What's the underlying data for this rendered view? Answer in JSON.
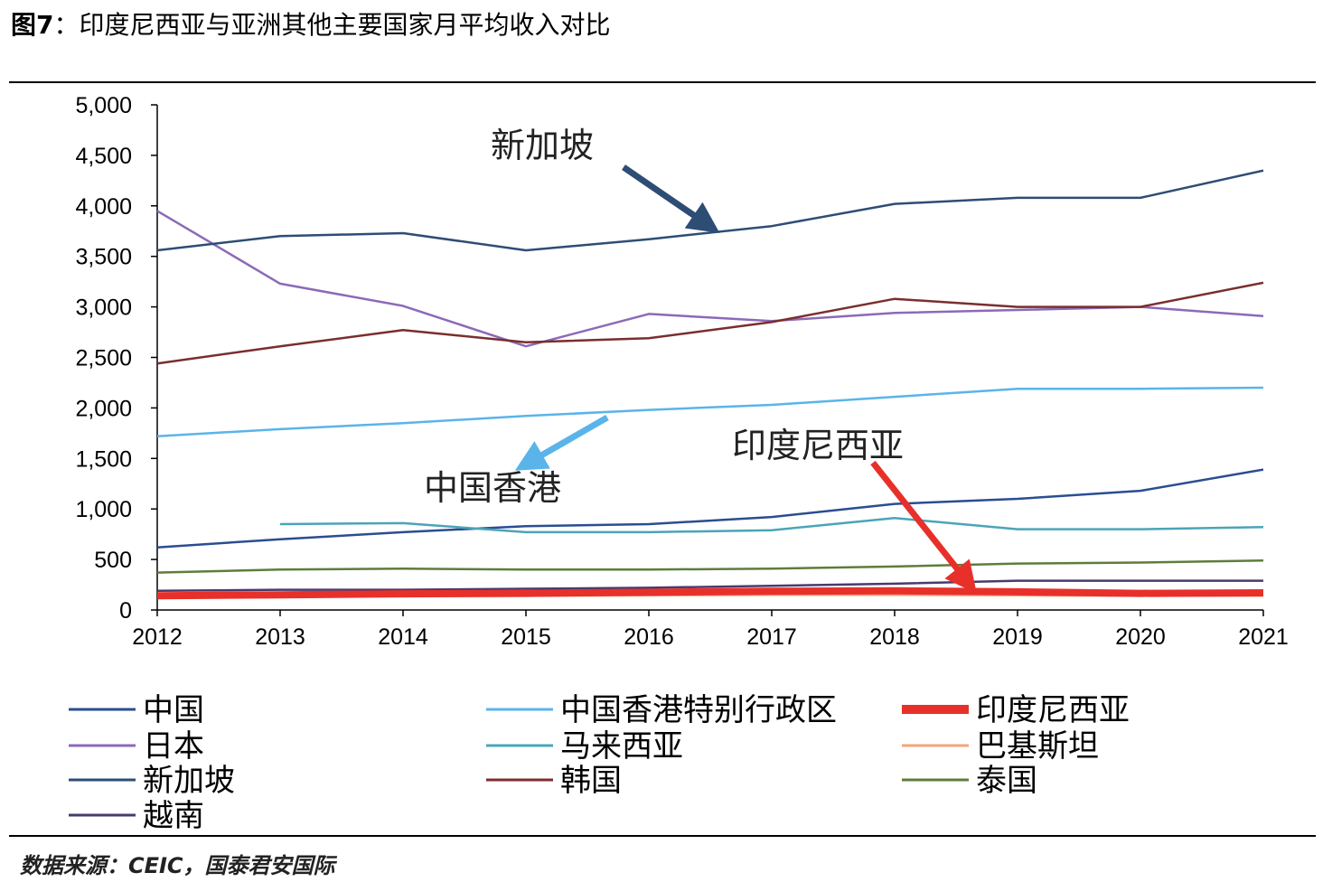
{
  "title": {
    "fig_label": "图7",
    "sep": "：",
    "text": "印度尼西亚与亚洲其他主要国家月平均收入对比"
  },
  "source": "数据来源：CEIC，国泰君安国际",
  "chart_data": {
    "type": "line",
    "title": "印度尼西亚与亚洲其他主要国家月平均收入对比",
    "xlabel": "",
    "ylabel": "",
    "ylim": [
      0,
      5000
    ],
    "yticks": [
      0,
      500,
      1000,
      1500,
      2000,
      2500,
      3000,
      3500,
      4000,
      4500,
      5000
    ],
    "ytick_labels": [
      "0",
      "500",
      "1,000",
      "1,500",
      "2,000",
      "2,500",
      "3,000",
      "3,500",
      "4,000",
      "4,500",
      "5,000"
    ],
    "x": [
      2012,
      2013,
      2014,
      2015,
      2016,
      2017,
      2018,
      2019,
      2020,
      2021
    ],
    "x_labels": [
      "2012",
      "2013",
      "2014",
      "2015",
      "2016",
      "2017",
      "2018",
      "2019",
      "2020",
      "2021"
    ],
    "grid": false,
    "legend_position": "bottom",
    "series": [
      {
        "name": "中国",
        "color": "#2b4d91",
        "width": 2.5,
        "values": [
          620,
          700,
          770,
          830,
          850,
          920,
          1050,
          1100,
          1180,
          1390
        ]
      },
      {
        "name": "中国香港特别行政区",
        "color": "#5ab4ea",
        "width": 2.5,
        "values": [
          1720,
          1790,
          1850,
          1920,
          1980,
          2030,
          2110,
          2190,
          2190,
          2200
        ]
      },
      {
        "name": "印度尼西亚",
        "color": "#e8302a",
        "width": 8,
        "values": [
          140,
          150,
          160,
          165,
          175,
          185,
          190,
          180,
          165,
          170
        ]
      },
      {
        "name": "日本",
        "color": "#8b6ab8",
        "width": 2.5,
        "values": [
          3950,
          3230,
          3010,
          2610,
          2930,
          2860,
          2940,
          2970,
          3000,
          2910
        ]
      },
      {
        "name": "马来西亚",
        "color": "#4ba4b8",
        "width": 2.5,
        "values": [
          null,
          850,
          860,
          770,
          770,
          790,
          910,
          800,
          800,
          820
        ]
      },
      {
        "name": "巴基斯坦",
        "color": "#f5a57a",
        "width": 2.5,
        "values": [
          130,
          135,
          140,
          140,
          145,
          150,
          150,
          145,
          140,
          140
        ]
      },
      {
        "name": "新加坡",
        "color": "#2e4d75",
        "width": 2.5,
        "values": [
          3560,
          3700,
          3730,
          3560,
          3670,
          3800,
          4020,
          4080,
          4080,
          4350
        ]
      },
      {
        "name": "韩国",
        "color": "#7a2e2e",
        "width": 2.5,
        "values": [
          2440,
          2610,
          2770,
          2650,
          2690,
          2850,
          3080,
          3000,
          3000,
          3240
        ]
      },
      {
        "name": "泰国",
        "color": "#5e7d3a",
        "width": 2.5,
        "values": [
          370,
          400,
          410,
          400,
          400,
          410,
          430,
          460,
          470,
          490
        ]
      },
      {
        "name": "越南",
        "color": "#4a3a6e",
        "width": 2.5,
        "values": [
          190,
          200,
          200,
          210,
          220,
          240,
          260,
          290,
          290,
          290
        ]
      }
    ],
    "annotations": [
      {
        "text": "新加坡",
        "series": "新加坡",
        "color": "#2e4d75"
      },
      {
        "text": "中国香港",
        "series": "中国香港特别行政区",
        "color": "#5ab4ea"
      },
      {
        "text": "印度尼西亚",
        "series": "印度尼西亚",
        "color": "#e8302a"
      }
    ]
  }
}
